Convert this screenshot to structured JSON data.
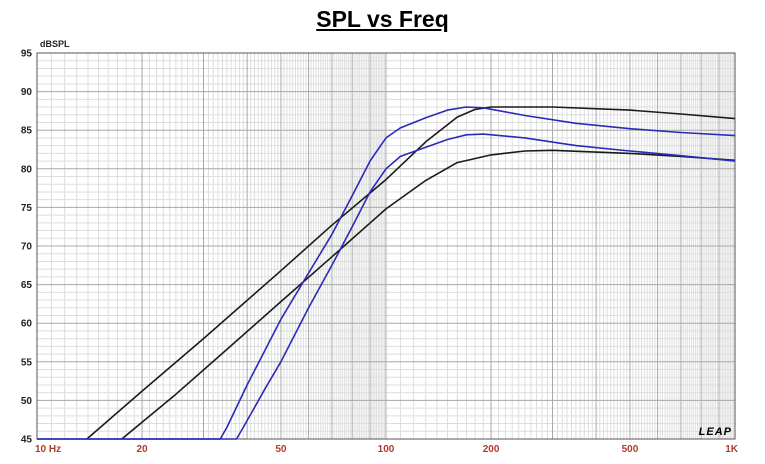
{
  "chart_data": {
    "type": "line",
    "title": "SPL vs Freq",
    "ylabel": "dBSPL",
    "xlabel": "",
    "xscale": "log",
    "xlim": [
      10,
      1000
    ],
    "ylim": [
      45,
      95
    ],
    "grid": true,
    "x_tick_labels": [
      {
        "value": 10,
        "label": "10 Hz"
      },
      {
        "value": 20,
        "label": "20"
      },
      {
        "value": 50,
        "label": "50"
      },
      {
        "value": 100,
        "label": "100"
      },
      {
        "value": 200,
        "label": "200"
      },
      {
        "value": 500,
        "label": "500"
      },
      {
        "value": 1000,
        "label": "1K"
      }
    ],
    "y_tick_labels": [
      95,
      90,
      85,
      80,
      75,
      70,
      65,
      60,
      55,
      50,
      45
    ],
    "brand": "LEAP",
    "colors": {
      "black": "#1a1a1a",
      "blue": "#2b2bb8",
      "xtick": "#b03a2e"
    },
    "series": [
      {
        "color": "black",
        "points": [
          [
            13.9,
            45
          ],
          [
            20,
            51.2
          ],
          [
            30,
            58
          ],
          [
            50,
            66.8
          ],
          [
            70,
            72.7
          ],
          [
            100,
            78.6
          ],
          [
            130,
            83.5
          ],
          [
            160,
            86.7
          ],
          [
            180,
            87.7
          ],
          [
            200,
            88
          ],
          [
            300,
            88
          ],
          [
            500,
            87.6
          ],
          [
            700,
            87.1
          ],
          [
            1000,
            86.5
          ]
        ]
      },
      {
        "color": "black",
        "points": [
          [
            17.5,
            45
          ],
          [
            25,
            50.8
          ],
          [
            35,
            56.6
          ],
          [
            50,
            62.8
          ],
          [
            70,
            68.6
          ],
          [
            100,
            74.8
          ],
          [
            130,
            78.5
          ],
          [
            160,
            80.8
          ],
          [
            200,
            81.8
          ],
          [
            250,
            82.3
          ],
          [
            300,
            82.4
          ],
          [
            500,
            82
          ],
          [
            700,
            81.6
          ],
          [
            1000,
            81.1
          ]
        ]
      },
      {
        "color": "blue",
        "points": [
          [
            10,
            45
          ],
          [
            33.5,
            45
          ],
          [
            35,
            46.5
          ],
          [
            40,
            52
          ],
          [
            45,
            56.5
          ],
          [
            50,
            60.5
          ],
          [
            60,
            66.5
          ],
          [
            70,
            71.5
          ],
          [
            80,
            76.5
          ],
          [
            90,
            81
          ],
          [
            100,
            84
          ],
          [
            110,
            85.3
          ],
          [
            130,
            86.6
          ],
          [
            150,
            87.6
          ],
          [
            170,
            88
          ],
          [
            190,
            87.9
          ],
          [
            250,
            86.9
          ],
          [
            350,
            85.9
          ],
          [
            500,
            85.2
          ],
          [
            700,
            84.7
          ],
          [
            1000,
            84.3
          ]
        ]
      },
      {
        "color": "blue",
        "points": [
          [
            10,
            45
          ],
          [
            37.3,
            45
          ],
          [
            39,
            46.5
          ],
          [
            45,
            51.5
          ],
          [
            50,
            55
          ],
          [
            60,
            62
          ],
          [
            70,
            67.5
          ],
          [
            80,
            72.5
          ],
          [
            90,
            77
          ],
          [
            100,
            80
          ],
          [
            110,
            81.6
          ],
          [
            130,
            82.8
          ],
          [
            150,
            83.8
          ],
          [
            170,
            84.4
          ],
          [
            190,
            84.5
          ],
          [
            250,
            84
          ],
          [
            350,
            83
          ],
          [
            500,
            82.3
          ],
          [
            700,
            81.7
          ],
          [
            1000,
            81
          ]
        ]
      }
    ]
  }
}
